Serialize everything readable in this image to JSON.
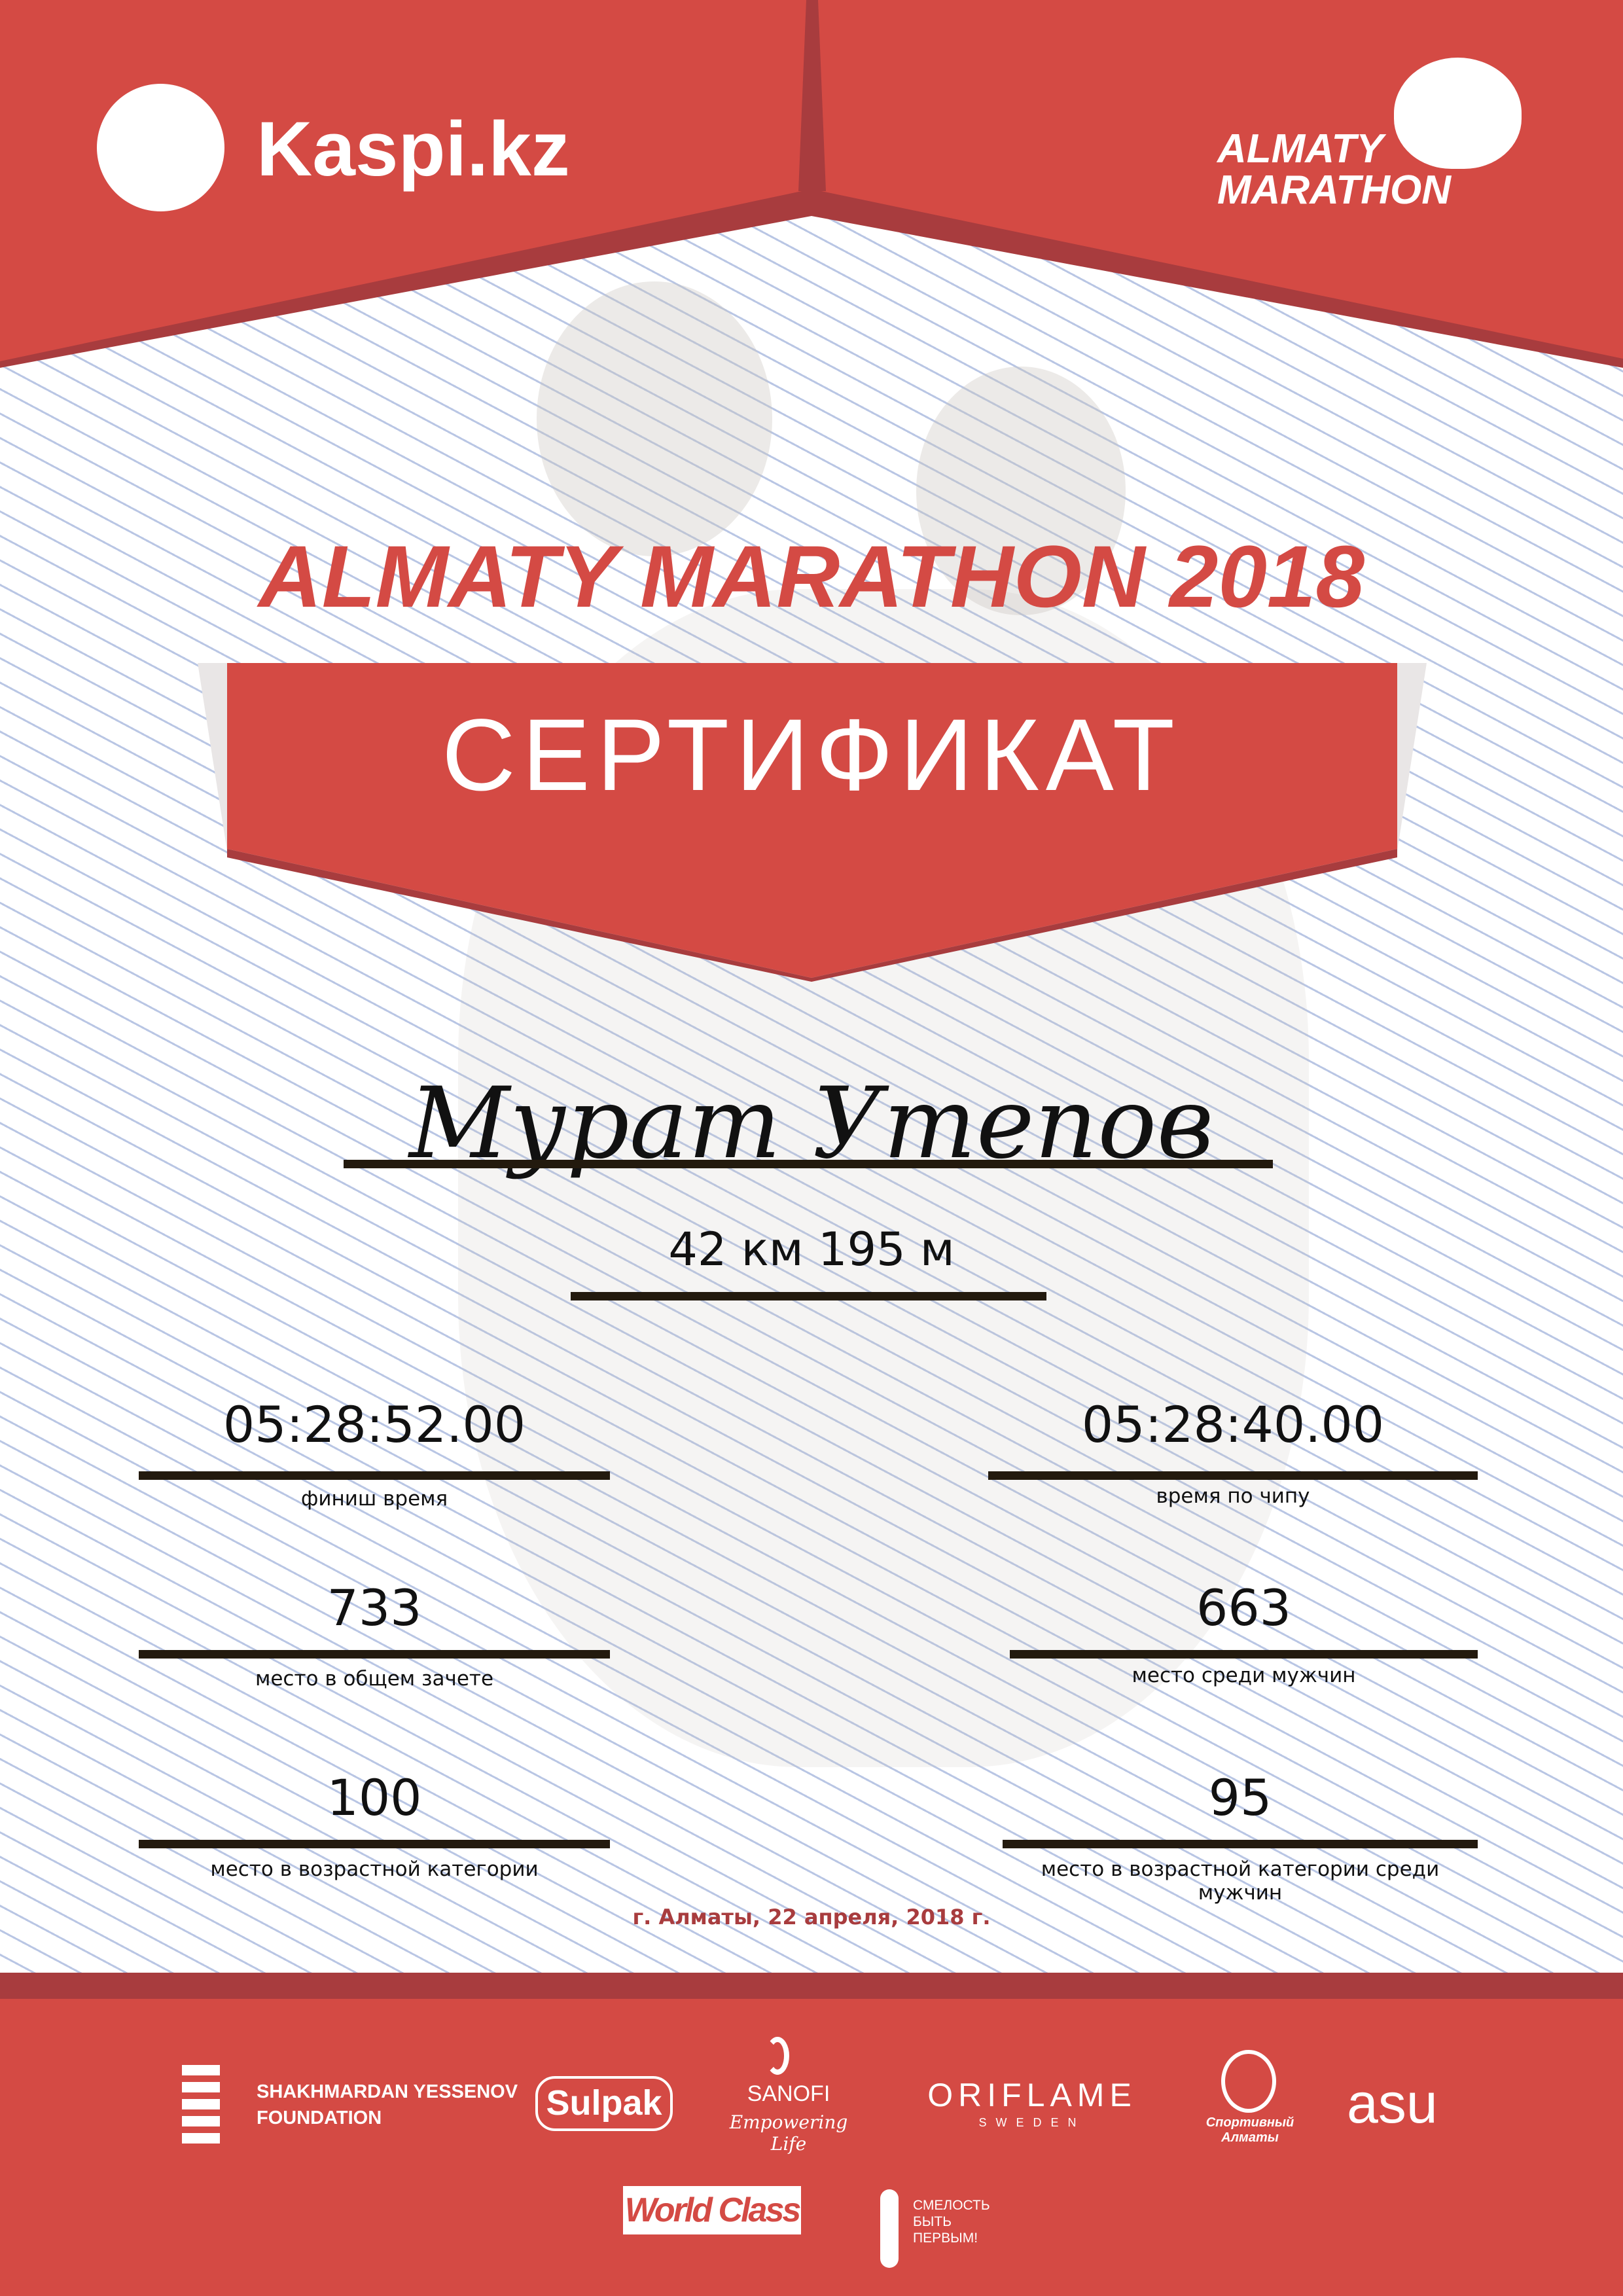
{
  "header": {
    "sponsor_logo": "Kaspi.kz",
    "event_logo_line1": "ALMATY",
    "event_logo_line2": "MARATHON"
  },
  "title": "ALMATY MARATHON 2018",
  "banner": "СЕРТИФИКАТ",
  "participant": {
    "name": "Мурат Утепов",
    "distance": "42 км 195 м"
  },
  "results": [
    {
      "value": "05:28:52.00",
      "label": "финиш время"
    },
    {
      "value": "05:28:40.00",
      "label": "время по чипу"
    },
    {
      "value": "733",
      "label": "место в общем зачете"
    },
    {
      "value": "663",
      "label": "место среди мужчин"
    },
    {
      "value": "100",
      "label": "место в возрастной категории"
    },
    {
      "value": "95",
      "label": "место в возрастной категории среди мужчин"
    }
  ],
  "date": "г. Алматы, 22 апреля, 2018 г.",
  "partners": {
    "yessenov_line1": "SHAKHMARDAN YESSENOV",
    "yessenov_line2": "FOUNDATION",
    "sulpak": "Sulpak",
    "sanofi": "SANOFI",
    "sanofi_tagline": "Empowering Life",
    "oriflame": "ORIFLAME",
    "oriflame_sub": "SWEDEN",
    "sport_almaty": "Спортивный Алматы",
    "asu": "asu",
    "worldclass": "World Class",
    "fund_line1": "СМЕЛОСТЬ",
    "fund_line2": "БЫТЬ",
    "fund_line3": "ПЕРВЫМ!"
  },
  "colors": {
    "primary_red": "#d44a44",
    "dark_red": "#a83c3e",
    "text": "#111111",
    "line": "#231a0e"
  }
}
